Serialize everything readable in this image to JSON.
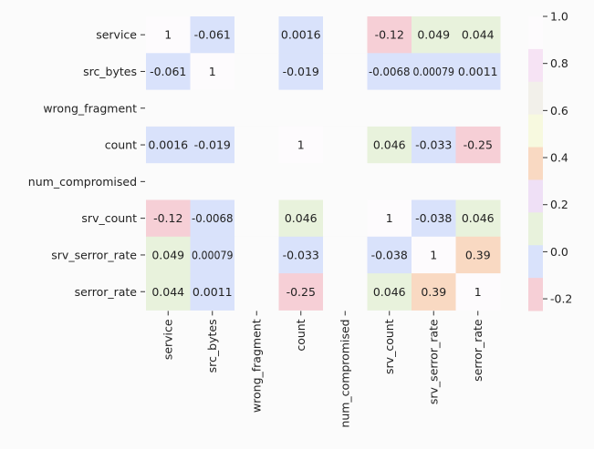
{
  "chart_data": {
    "type": "heatmap",
    "variables": [
      "service",
      "src_bytes",
      "wrong_fragment",
      "count",
      "num_compromised",
      "srv_count",
      "srv_serror_rate",
      "serror_rate"
    ],
    "matrix": [
      [
        1,
        -0.061,
        null,
        0.0016,
        null,
        -0.12,
        0.049,
        0.044
      ],
      [
        -0.061,
        1,
        null,
        -0.019,
        null,
        -0.0068,
        0.00079,
        0.0011
      ],
      [
        null,
        null,
        null,
        null,
        null,
        null,
        null,
        null
      ],
      [
        0.0016,
        -0.019,
        null,
        1,
        null,
        0.046,
        -0.033,
        -0.25
      ],
      [
        null,
        null,
        null,
        null,
        null,
        null,
        null,
        null
      ],
      [
        -0.12,
        -0.0068,
        null,
        0.046,
        null,
        1,
        -0.038,
        0.046
      ],
      [
        0.049,
        0.00079,
        null,
        -0.033,
        null,
        -0.038,
        1,
        0.39
      ],
      [
        0.044,
        0.0011,
        null,
        -0.25,
        null,
        0.046,
        0.39,
        1
      ]
    ],
    "cell_labels": [
      [
        "1",
        "-0.061",
        "",
        "0.0016",
        "",
        "-0.12",
        "0.049",
        "0.044"
      ],
      [
        "-0.061",
        "1",
        "",
        "-0.019",
        "",
        "-0.0068",
        "0.00079",
        "0.0011"
      ],
      [
        "",
        "",
        "",
        "",
        "",
        "",
        "",
        ""
      ],
      [
        "0.0016",
        "-0.019",
        "",
        "1",
        "",
        "0.046",
        "-0.033",
        "-0.25"
      ],
      [
        "",
        "",
        "",
        "",
        "",
        "",
        "",
        ""
      ],
      [
        "-0.12",
        "-0.0068",
        "",
        "0.046",
        "",
        "1",
        "-0.038",
        "0.046"
      ],
      [
        "0.049",
        "0.00079",
        "",
        "-0.033",
        "",
        "-0.038",
        "1",
        "0.39"
      ],
      [
        "0.044",
        "0.0011",
        "",
        "-0.25",
        "",
        "0.046",
        "0.39",
        "1"
      ]
    ],
    "colorbar": {
      "min": -0.25,
      "max": 1.0,
      "ticks": [
        1.0,
        0.8,
        0.6,
        0.4,
        0.2,
        0.0,
        -0.2
      ],
      "tick_labels": [
        "1.0",
        "0.8",
        "0.6",
        "0.4",
        "0.2",
        "0.0",
        "-0.2"
      ],
      "colors": [
        "#fdfbfd",
        "#f6e3f4",
        "#f2f0ea",
        "#f7f9df",
        "#f9d9c2",
        "#efe0f6",
        "#e8f2dc",
        "#d9e2fb",
        "#f6cfd6"
      ]
    },
    "nan_color": "#fbfbfb"
  }
}
